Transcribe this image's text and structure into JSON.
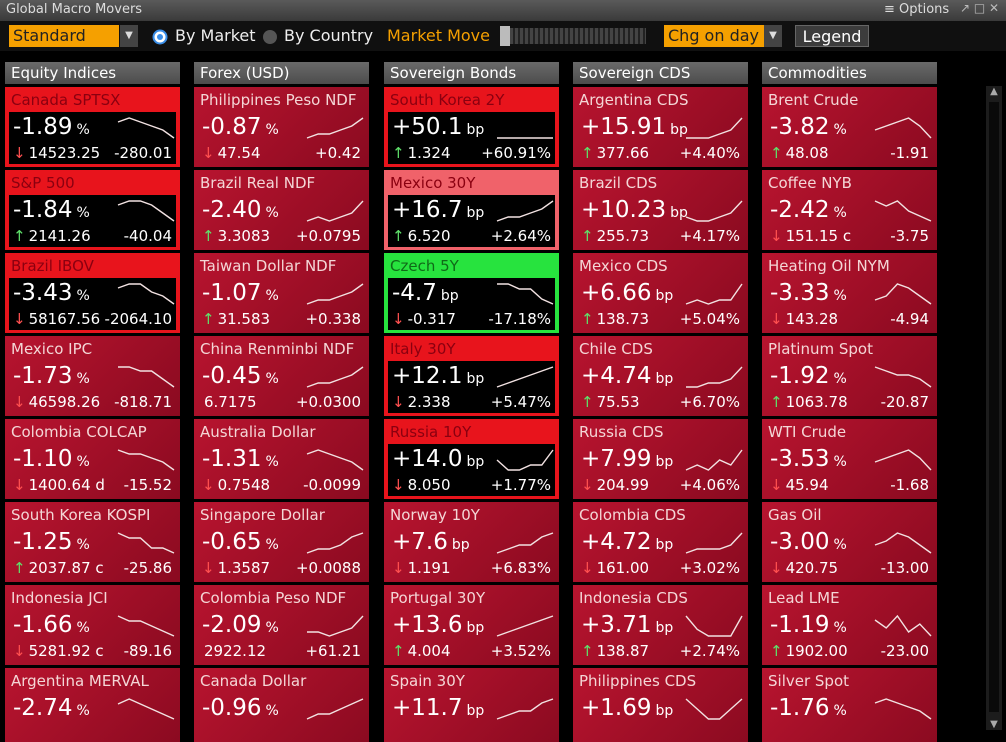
{
  "window": {
    "title": "Global Macro Movers",
    "options": "≡ Options"
  },
  "toolbar": {
    "view": "Standard",
    "by_market": "By Market",
    "by_country": "By Country",
    "market_move": "Market Move",
    "change": "Chg on day",
    "legend": "Legend"
  },
  "columns": [
    {
      "header": "Equity Indices",
      "tiles": [
        {
          "name": "Canada SPTSX",
          "change": "-1.89",
          "unit": "%",
          "arrow": "↓",
          "price": "14523.25",
          "net": "-280.01",
          "style": "alert",
          "spark": [
            5,
            6,
            5,
            4,
            3,
            1
          ]
        },
        {
          "name": "S&P 500",
          "change": "-1.84",
          "unit": "%",
          "arrow": "↑",
          "price": "2141.26",
          "net": "-40.04",
          "style": "alert",
          "spark": [
            5,
            6,
            6,
            5,
            3,
            1
          ]
        },
        {
          "name": "Brazil IBOV",
          "change": "-3.43",
          "unit": "%",
          "arrow": "↓",
          "price": "58167.56",
          "net": "-2064.10",
          "style": "alert",
          "spark": [
            5,
            6,
            6,
            4,
            3,
            1
          ]
        },
        {
          "name": "Mexico IPC",
          "change": "-1.73",
          "unit": "%",
          "arrow": "↓",
          "price": "46598.26",
          "net": "-818.71",
          "spark": [
            6,
            6,
            5,
            5,
            3,
            1
          ]
        },
        {
          "name": "Colombia COLCAP",
          "change": "-1.10",
          "unit": "%",
          "arrow": "↓",
          "price": "1400.64 d",
          "net": "-15.52",
          "spark": [
            6,
            5,
            5,
            4,
            3,
            1
          ]
        },
        {
          "name": "South Korea KOSPI",
          "change": "-1.25",
          "unit": "%",
          "arrow": "↑",
          "price": "2037.87 c",
          "net": "-25.86",
          "spark": [
            6,
            5,
            5,
            3,
            3,
            2
          ]
        },
        {
          "name": "Indonesia JCI",
          "change": "-1.66",
          "unit": "%",
          "arrow": "↓",
          "price": "5281.92 c",
          "net": "-89.16",
          "spark": [
            6,
            5,
            5,
            4,
            3,
            2
          ]
        },
        {
          "name": "Argentina MERVAL",
          "change": "-2.74",
          "unit": "%",
          "spark": [
            5,
            6,
            5,
            4,
            3,
            2
          ]
        }
      ]
    },
    {
      "header": "Forex (USD)",
      "tiles": [
        {
          "name": "Philippines Peso NDF",
          "change": "-0.87",
          "unit": "%",
          "arrow": "↓",
          "price": "47.54",
          "net": "+0.42",
          "spark": [
            1,
            2,
            2,
            3,
            4,
            6
          ]
        },
        {
          "name": "Brazil Real NDF",
          "change": "-2.40",
          "unit": "%",
          "arrow": "↑",
          "price": "3.3083",
          "net": "+0.0795",
          "spark": [
            1,
            2,
            1,
            2,
            3,
            6
          ]
        },
        {
          "name": "Taiwan Dollar NDF",
          "change": "-1.07",
          "unit": "%",
          "arrow": "↑",
          "price": "31.583",
          "net": "+0.338",
          "spark": [
            1,
            2,
            2,
            3,
            4,
            6
          ]
        },
        {
          "name": "China Renminbi NDF",
          "change": "-0.45",
          "unit": "%",
          "price": "6.7175",
          "net": "+0.0300",
          "spark": [
            1,
            2,
            2,
            3,
            4,
            6
          ]
        },
        {
          "name": "Australia Dollar",
          "change": "-1.31",
          "unit": "%",
          "arrow": "↓",
          "price": "0.7548",
          "net": "-0.0099",
          "spark": [
            5,
            6,
            5,
            4,
            3,
            1
          ]
        },
        {
          "name": "Singapore Dollar",
          "change": "-0.65",
          "unit": "%",
          "arrow": "↓",
          "price": "1.3587",
          "net": "+0.0088",
          "spark": [
            1,
            2,
            2,
            3,
            5,
            6
          ]
        },
        {
          "name": "Colombia Peso NDF",
          "change": "-2.09",
          "unit": "%",
          "price": "2922.12",
          "net": "+61.21",
          "spark": [
            2,
            2,
            1,
            2,
            3,
            6
          ]
        },
        {
          "name": "Canada Dollar",
          "change": "-0.96",
          "unit": "%",
          "spark": [
            1,
            2,
            2,
            3,
            4,
            5
          ]
        }
      ]
    },
    {
      "header": "Sovereign Bonds",
      "tiles": [
        {
          "name": "South Korea 2Y",
          "change": "+50.1",
          "unit": "bp",
          "arrow": "↑",
          "price": "1.324",
          "net": "+60.91%",
          "style": "alert",
          "spark": [
            5,
            5,
            5,
            5,
            5,
            5
          ]
        },
        {
          "name": "Mexico 30Y",
          "change": "+16.7",
          "unit": "bp",
          "arrow": "↑",
          "price": "6.520",
          "net": "+2.64%",
          "style": "pink",
          "spark": [
            1,
            2,
            2,
            3,
            4,
            6
          ]
        },
        {
          "name": "Czech 5Y",
          "change": "-4.7",
          "unit": "bp",
          "arrow": "↓",
          "price": "-0.317",
          "net": "-17.18%",
          "style": "green",
          "spark": [
            5,
            5,
            4,
            4,
            2,
            1
          ]
        },
        {
          "name": "Italy 30Y",
          "change": "+12.1",
          "unit": "bp",
          "arrow": "↓",
          "price": "2.338",
          "net": "+5.47%",
          "style": "alert",
          "spark": [
            1,
            2,
            3,
            4,
            5,
            6
          ]
        },
        {
          "name": "Russia 10Y",
          "change": "+14.0",
          "unit": "bp",
          "arrow": "↓",
          "price": "8.050",
          "net": "+1.77%",
          "style": "alert",
          "spark": [
            4,
            2,
            2,
            3,
            3,
            6
          ]
        },
        {
          "name": "Norway 10Y",
          "change": "+7.6",
          "unit": "bp",
          "arrow": "↓",
          "price": "1.191",
          "net": "+6.83%",
          "spark": [
            1,
            2,
            3,
            3,
            5,
            6
          ]
        },
        {
          "name": "Portugal 30Y",
          "change": "+13.6",
          "unit": "bp",
          "arrow": "↑",
          "price": "4.004",
          "net": "+3.52%",
          "spark": [
            1,
            2,
            3,
            4,
            5,
            6
          ]
        },
        {
          "name": "Spain 30Y",
          "change": "+11.7",
          "unit": "bp",
          "spark": [
            1,
            2,
            3,
            3,
            5,
            6
          ]
        }
      ]
    },
    {
      "header": "Sovereign CDS",
      "tiles": [
        {
          "name": "Argentina CDS",
          "change": "+15.91",
          "unit": "bp",
          "arrow": "↑",
          "price": "377.66",
          "net": "+4.40%",
          "spark": [
            1,
            1,
            1,
            2,
            3,
            6
          ]
        },
        {
          "name": "Brazil CDS",
          "change": "+10.23",
          "unit": "bp",
          "arrow": "↑",
          "price": "255.73",
          "net": "+4.17%",
          "spark": [
            2,
            1,
            1,
            2,
            3,
            6
          ]
        },
        {
          "name": "Mexico CDS",
          "change": "+6.66",
          "unit": "bp",
          "arrow": "↑",
          "price": "138.73",
          "net": "+5.04%",
          "spark": [
            1,
            2,
            1,
            2,
            2,
            6
          ]
        },
        {
          "name": "Chile CDS",
          "change": "+4.74",
          "unit": "bp",
          "arrow": "↑",
          "price": "75.53",
          "net": "+6.70%",
          "spark": [
            1,
            1,
            2,
            2,
            3,
            6
          ]
        },
        {
          "name": "Russia CDS",
          "change": "+7.99",
          "unit": "bp",
          "arrow": "↓",
          "price": "204.99",
          "net": "+4.06%",
          "spark": [
            2,
            3,
            2,
            4,
            3,
            6
          ]
        },
        {
          "name": "Colombia CDS",
          "change": "+4.72",
          "unit": "bp",
          "arrow": "↓",
          "price": "161.00",
          "net": "+3.02%",
          "spark": [
            1,
            2,
            2,
            2,
            3,
            6
          ]
        },
        {
          "name": "Indonesia CDS",
          "change": "+3.71",
          "unit": "bp",
          "arrow": "↑",
          "price": "138.87",
          "net": "+2.74%",
          "spark": [
            5,
            3,
            2,
            2,
            2,
            5
          ]
        },
        {
          "name": "Philippines CDS",
          "change": "+1.69",
          "unit": "bp",
          "spark": [
            5,
            4,
            3,
            3,
            4,
            5
          ]
        }
      ]
    },
    {
      "header": "Commodities",
      "tiles": [
        {
          "name": "Brent Crude",
          "change": "-3.82",
          "unit": "%",
          "arrow": "↑",
          "price": "48.08",
          "net": "-1.91",
          "spark": [
            3,
            4,
            5,
            6,
            4,
            1
          ]
        },
        {
          "name": "Coffee NYB",
          "change": "-2.42",
          "unit": "%",
          "arrow": "↓",
          "price": "151.15 c",
          "net": "-3.75",
          "spark": [
            6,
            5,
            6,
            4,
            3,
            2
          ]
        },
        {
          "name": "Heating Oil NYM",
          "change": "-3.33",
          "unit": "%",
          "arrow": "↓",
          "price": "143.28",
          "net": "-4.94",
          "spark": [
            2,
            3,
            6,
            5,
            3,
            1
          ]
        },
        {
          "name": "Platinum Spot",
          "change": "-1.92",
          "unit": "%",
          "arrow": "↑",
          "price": "1063.78",
          "net": "-20.87",
          "spark": [
            6,
            5,
            4,
            4,
            3,
            1
          ]
        },
        {
          "name": "WTI Crude",
          "change": "-3.53",
          "unit": "%",
          "arrow": "↓",
          "price": "45.94",
          "net": "-1.68",
          "spark": [
            3,
            4,
            5,
            6,
            4,
            1
          ]
        },
        {
          "name": "Gas Oil",
          "change": "-3.00",
          "unit": "%",
          "arrow": "↓",
          "price": "420.75",
          "net": "-13.00",
          "spark": [
            3,
            4,
            6,
            5,
            3,
            1
          ]
        },
        {
          "name": "Lead LME",
          "change": "-1.19",
          "unit": "%",
          "arrow": "↑",
          "price": "1902.00",
          "net": "-23.00",
          "spark": [
            5,
            3,
            6,
            2,
            4,
            1
          ]
        },
        {
          "name": "Silver Spot",
          "change": "-1.76",
          "unit": "%",
          "spark": [
            5,
            6,
            5,
            4,
            3,
            1
          ]
        }
      ]
    }
  ]
}
